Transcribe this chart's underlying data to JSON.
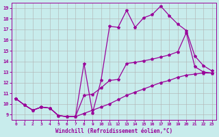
{
  "xlabel": "Windchill (Refroidissement éolien,°C)",
  "bg_color": "#c8ecec",
  "line_color": "#990099",
  "grid_color": "#b0b0b0",
  "xlim": [
    -0.5,
    23.5
  ],
  "ylim": [
    8.5,
    19.5
  ],
  "xticks": [
    0,
    1,
    2,
    3,
    4,
    5,
    6,
    7,
    8,
    9,
    10,
    11,
    12,
    13,
    14,
    15,
    16,
    17,
    18,
    19,
    20,
    21,
    22,
    23
  ],
  "yticks": [
    9,
    10,
    11,
    12,
    13,
    14,
    15,
    16,
    17,
    18,
    19
  ],
  "line1_x": [
    0,
    1,
    2,
    3,
    4,
    5,
    6,
    7,
    8,
    9,
    10,
    11,
    12,
    13,
    14,
    15,
    16,
    17,
    18,
    19,
    20,
    21,
    22,
    23
  ],
  "line1_y": [
    10.5,
    9.9,
    9.4,
    9.7,
    9.6,
    8.9,
    8.8,
    8.8,
    13.8,
    9.15,
    12.2,
    17.3,
    17.2,
    18.8,
    17.2,
    18.1,
    18.4,
    19.2,
    18.3,
    17.5,
    16.9,
    14.5,
    13.6,
    13.1
  ],
  "line2_x": [
    0,
    1,
    2,
    3,
    4,
    5,
    6,
    7,
    8,
    9,
    10,
    11,
    12,
    13,
    14,
    15,
    16,
    17,
    18,
    19,
    20,
    21,
    22,
    23
  ],
  "line2_y": [
    10.5,
    9.9,
    9.4,
    9.7,
    9.6,
    8.9,
    8.8,
    8.8,
    10.8,
    10.9,
    11.5,
    12.2,
    12.3,
    13.8,
    13.9,
    14.05,
    14.2,
    14.4,
    14.6,
    14.9,
    16.7,
    13.5,
    13.0,
    12.9
  ],
  "line3_x": [
    0,
    1,
    2,
    3,
    4,
    5,
    6,
    7,
    8,
    9,
    10,
    11,
    12,
    13,
    14,
    15,
    16,
    17,
    18,
    19,
    20,
    21,
    22,
    23
  ],
  "line3_y": [
    10.5,
    9.9,
    9.4,
    9.7,
    9.6,
    8.9,
    8.8,
    8.8,
    9.1,
    9.4,
    9.7,
    10.0,
    10.4,
    10.8,
    11.1,
    11.4,
    11.7,
    12.0,
    12.2,
    12.5,
    12.7,
    12.8,
    12.9,
    12.9
  ],
  "marker": "*",
  "markersize": 3,
  "linewidth": 0.9
}
